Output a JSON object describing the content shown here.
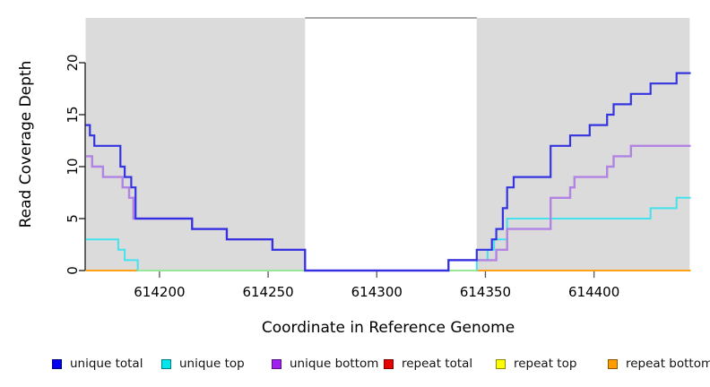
{
  "chart_data": {
    "type": "line",
    "step": "post",
    "title": "",
    "xlabel": "Coordinate in Reference Genome",
    "ylabel": "Read Coverage Depth",
    "xlim": [
      614166,
      614444
    ],
    "ylim": [
      0,
      24.3
    ],
    "x_ticks": [
      614200,
      614250,
      614300,
      614350,
      614400
    ],
    "y_ticks": [
      0,
      5,
      10,
      15,
      20
    ],
    "grid": false,
    "legend_position": "bottom",
    "panel_color": "#DBDBDB",
    "gap_top_line_color": "#8C8C8C",
    "shaded_regions": [
      {
        "from": 614166,
        "to": 614267
      },
      {
        "from": 614346,
        "to": 614444
      }
    ],
    "uncovered_gap_region": {
      "from": 614267,
      "to": 614346
    },
    "series": [
      {
        "name": "repeat total",
        "color": "#E60000",
        "width": 2,
        "points": [
          [
            614166,
            0
          ]
        ]
      },
      {
        "name": "repeat top",
        "color": "#FFFF33",
        "width": 2,
        "points": [
          [
            614166,
            0
          ]
        ]
      },
      {
        "name": "repeat bottom",
        "color": "#FFA115",
        "width": 2,
        "points": [
          [
            614166,
            0
          ]
        ]
      },
      {
        "name": "unique top",
        "color": "#45E2EE",
        "width": 2,
        "points": [
          [
            614166,
            3
          ],
          [
            614181,
            2
          ],
          [
            614184,
            1
          ],
          [
            614190,
            0
          ],
          [
            614346,
            1
          ],
          [
            614351,
            2
          ],
          [
            614354,
            3
          ],
          [
            614360,
            5
          ],
          [
            614426,
            6
          ],
          [
            614438,
            7
          ]
        ]
      },
      {
        "name": "overlap baseline",
        "color": "#98E89A",
        "width": 2,
        "points": [
          [
            614190,
            0
          ]
        ],
        "end": 614346
      },
      {
        "name": "unique bottom",
        "color": "#B183E3",
        "width": 2.4,
        "points": [
          [
            614166,
            11
          ],
          [
            614169,
            10
          ],
          [
            614174,
            9
          ],
          [
            614183,
            8
          ],
          [
            614186,
            7
          ],
          [
            614188,
            5
          ],
          [
            614215,
            4
          ],
          [
            614231,
            3
          ],
          [
            614252,
            2
          ],
          [
            614267,
            0
          ],
          [
            614333,
            1
          ],
          [
            614355,
            2
          ],
          [
            614360,
            4
          ],
          [
            614380,
            7
          ],
          [
            614389,
            8
          ],
          [
            614391,
            9
          ],
          [
            614406,
            10
          ],
          [
            614409,
            11
          ],
          [
            614417,
            12
          ]
        ]
      },
      {
        "name": "unique total",
        "color": "#2B2BE0",
        "width": 2.2,
        "opacity": 0.95,
        "points": [
          [
            614166,
            14
          ],
          [
            614168,
            13
          ],
          [
            614170,
            12
          ],
          [
            614182,
            10
          ],
          [
            614184,
            9
          ],
          [
            614187,
            8
          ],
          [
            614189,
            5
          ],
          [
            614215,
            4
          ],
          [
            614231,
            3
          ],
          [
            614252,
            2
          ],
          [
            614267,
            0
          ],
          [
            614333,
            1
          ],
          [
            614346,
            2
          ],
          [
            614353,
            3
          ],
          [
            614355,
            4
          ],
          [
            614358,
            6
          ],
          [
            614360,
            8
          ],
          [
            614363,
            9
          ],
          [
            614380,
            12
          ],
          [
            614389,
            13
          ],
          [
            614398,
            14
          ],
          [
            614406,
            15
          ],
          [
            614409,
            16
          ],
          [
            614417,
            17
          ],
          [
            614426,
            18
          ],
          [
            614438,
            19
          ]
        ]
      }
    ],
    "legend": [
      {
        "label": "unique total",
        "color": "#0000EE"
      },
      {
        "label": "unique top",
        "color": "#00E5EE"
      },
      {
        "label": "unique bottom",
        "color": "#A020F0"
      },
      {
        "label": "repeat total",
        "color": "#E60000"
      },
      {
        "label": "repeat top",
        "color": "#FFFF00"
      },
      {
        "label": "repeat bottom",
        "color": "#FF9D00"
      }
    ]
  }
}
